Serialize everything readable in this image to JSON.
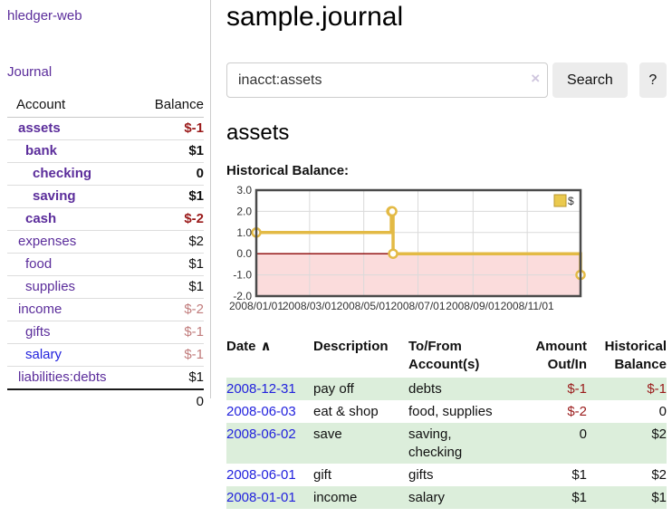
{
  "app": {
    "title": "hledger-web"
  },
  "sidebar": {
    "nav_journal": "Journal",
    "table": {
      "header_account": "Account",
      "header_balance": "Balance",
      "accounts": [
        {
          "name": "assets",
          "balance": "$-1"
        },
        {
          "name": "bank",
          "balance": "$1"
        },
        {
          "name": "checking",
          "balance": "0"
        },
        {
          "name": "saving",
          "balance": "$1"
        },
        {
          "name": "cash",
          "balance": "$-2"
        },
        {
          "name": "expenses",
          "balance": "$2"
        },
        {
          "name": "food",
          "balance": "$1"
        },
        {
          "name": "supplies",
          "balance": "$1"
        },
        {
          "name": "income",
          "balance": "$-2"
        },
        {
          "name": "gifts",
          "balance": "$-1"
        },
        {
          "name": "salary",
          "balance": "$-1"
        },
        {
          "name": "liabilities:debts",
          "balance": "$1"
        }
      ],
      "total": "0"
    }
  },
  "main": {
    "title": "sample.journal",
    "search": {
      "value": "inacct:assets",
      "clear_icon": "×",
      "button_label": "Search",
      "help_label": "?"
    },
    "account_heading": "assets",
    "chart_label": "Historical Balance:",
    "register": {
      "sort_indicator": "∧",
      "headers": [
        {
          "l1": "Date",
          "l2": ""
        },
        {
          "l1": "Description",
          "l2": ""
        },
        {
          "l1": "To/From",
          "l2": "Account(s)"
        },
        {
          "l1": "Amount",
          "l2": "Out/In"
        },
        {
          "l1": "Historical",
          "l2": "Balance"
        }
      ],
      "rows": [
        {
          "date": "2008-12-31",
          "description": "pay off",
          "accounts": "debts",
          "amount": "$-1",
          "balance": "$-1"
        },
        {
          "date": "2008-06-03",
          "description": "eat & shop",
          "accounts": "food, supplies",
          "amount": "$-2",
          "balance": "0"
        },
        {
          "date": "2008-06-02",
          "description": "save",
          "accounts": "saving,\nchecking",
          "amount": "0",
          "balance": "$2"
        },
        {
          "date": "2008-06-01",
          "description": "gift",
          "accounts": "gifts",
          "amount": "$1",
          "balance": "$2"
        },
        {
          "date": "2008-01-01",
          "description": "income",
          "accounts": "salary",
          "amount": "$1",
          "balance": "$1"
        }
      ]
    }
  },
  "chart_data": {
    "type": "line",
    "title": "Historical Balance:",
    "series": [
      {
        "name": "$",
        "step": true,
        "points": [
          {
            "x": "2008-01-01",
            "y": 1
          },
          {
            "x": "2008-06-01",
            "y": 2
          },
          {
            "x": "2008-06-02",
            "y": 2
          },
          {
            "x": "2008-06-03",
            "y": 0
          },
          {
            "x": "2008-12-31",
            "y": -1
          }
        ]
      }
    ],
    "x_range": [
      "2008-01-01",
      "2008-12-31"
    ],
    "ylim": [
      -2,
      3
    ],
    "yticks": [
      {
        "value": 3,
        "label": "3.0"
      },
      {
        "value": 2,
        "label": "2.0"
      },
      {
        "value": 1,
        "label": "1.0"
      },
      {
        "value": 0,
        "label": "0.0"
      },
      {
        "value": -1,
        "label": "-1.0"
      },
      {
        "value": -2,
        "label": "-2.0"
      }
    ],
    "xticks": [
      {
        "value": "2008-01-01",
        "label": "2008/01/01"
      },
      {
        "value": "2008-03-01",
        "label": "2008/03/01"
      },
      {
        "value": "2008-05-01",
        "label": "2008/05/01"
      },
      {
        "value": "2008-07-01",
        "label": "2008/07/01"
      },
      {
        "value": "2008-09-01",
        "label": "2008/09/01"
      },
      {
        "value": "2008-11-01",
        "label": "2008/11/01"
      }
    ],
    "legend": {
      "label": "$",
      "position": "top-right"
    },
    "grid": true,
    "colors": {
      "line": "#e3ba45",
      "marker_fill": "#ffffff",
      "negative_region": "#fbdcdc",
      "zero_line": "#8b0000",
      "grid": "#dadada",
      "frame": "#4a4a4a",
      "legend_fill": "#eac94e",
      "legend_stroke": "#b8962e",
      "tick_text": "#333333"
    }
  }
}
